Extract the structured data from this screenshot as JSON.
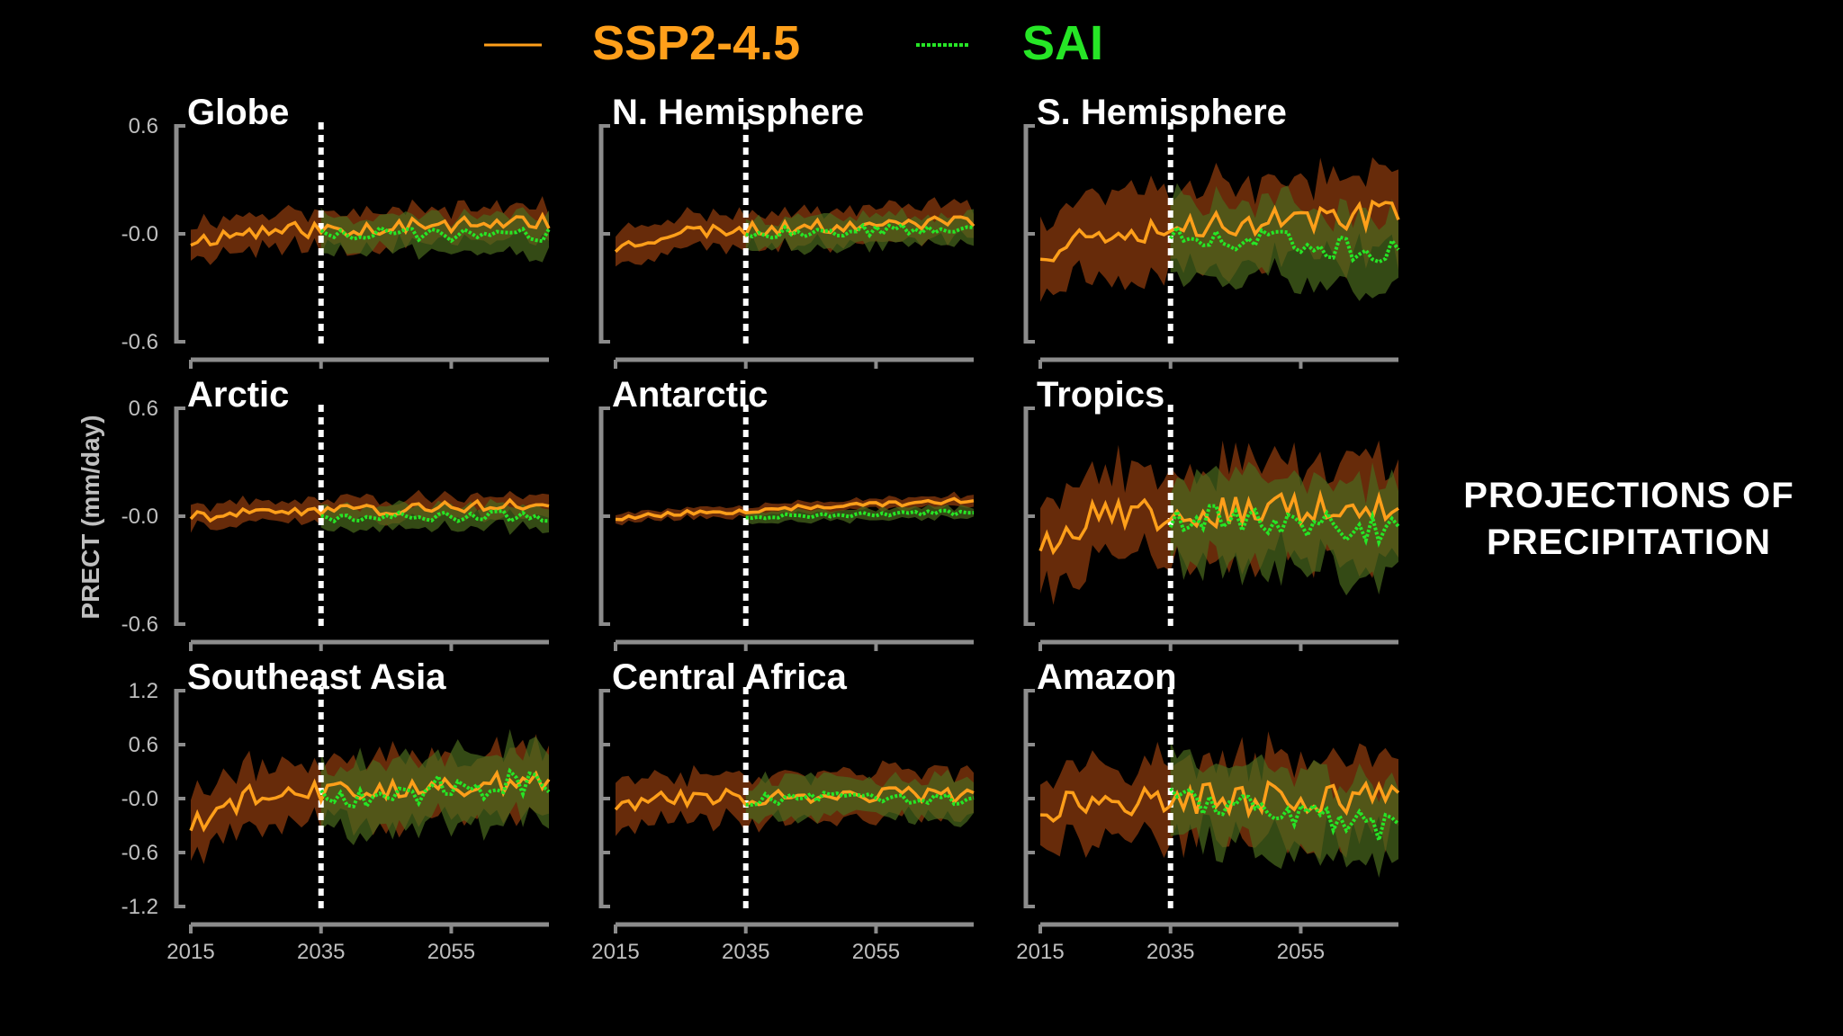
{
  "legend": {
    "ssp_label": "SSP2-4.5",
    "sai_label": "SAI"
  },
  "side_title": {
    "line1": "PROJECTIONS OF",
    "line2": "PRECIPITATION"
  },
  "colors": {
    "background": "#000000",
    "ssp": "#ff9f1a",
    "sai": "#26e626",
    "ssp_band": "#8a3a0e",
    "sai_band": "#4a6a1e",
    "axis": "#8c8c8c",
    "tick_text": "#bfbfbf",
    "marker": "#ffffff"
  },
  "chart_data": {
    "type": "line",
    "ylabel": "PRECT (mm/day)",
    "xlim": [
      2015,
      2070
    ],
    "xticks": [
      2015,
      2035,
      2055
    ],
    "xtick_labels": [
      "2015",
      "2035",
      "2055"
    ],
    "intervention_year": 2035,
    "row_yticks": [
      {
        "ylim": [
          -0.6,
          0.6
        ],
        "ticks": [
          0.6,
          0.0,
          -0.6
        ],
        "labels": [
          "0.6",
          "-0.0",
          "-0.6"
        ]
      },
      {
        "ylim": [
          -0.6,
          0.6
        ],
        "ticks": [
          0.6,
          0.0,
          -0.6
        ],
        "labels": [
          "0.6",
          "-0.0",
          "-0.6"
        ]
      },
      {
        "ylim": [
          -1.2,
          1.2
        ],
        "ticks": [
          1.2,
          0.6,
          0.0,
          -0.6,
          -1.2
        ],
        "labels": [
          "1.2",
          "0.6",
          "-0.0",
          "-0.6",
          "-1.2"
        ]
      }
    ],
    "panels": [
      {
        "title": "Globe",
        "row": 0,
        "col": 0,
        "ssp_trend": 0.07,
        "sai_trend": -0.01,
        "ssp_noise": 0.03,
        "sai_noise": 0.025,
        "ssp_spread": 0.1,
        "sai_spread": 0.1,
        "ssp_start": -0.04,
        "seed": 11
      },
      {
        "title": "N. Hemisphere",
        "row": 0,
        "col": 1,
        "ssp_trend": 0.07,
        "sai_trend": 0.04,
        "ssp_noise": 0.025,
        "sai_noise": 0.02,
        "ssp_spread": 0.09,
        "sai_spread": 0.08,
        "ssp_start": -0.08,
        "seed": 23
      },
      {
        "title": "S. Hemisphere",
        "row": 0,
        "col": 2,
        "ssp_trend": 0.12,
        "sai_trend": -0.1,
        "ssp_noise": 0.055,
        "sai_noise": 0.045,
        "ssp_spread": 0.22,
        "sai_spread": 0.2,
        "ssp_start": -0.1,
        "seed": 37
      },
      {
        "title": "Arctic",
        "row": 1,
        "col": 0,
        "ssp_trend": 0.07,
        "sai_trend": 0.0,
        "ssp_noise": 0.02,
        "sai_noise": 0.02,
        "ssp_spread": 0.06,
        "sai_spread": 0.06,
        "ssp_start": 0.0,
        "seed": 41
      },
      {
        "title": "Antarctic",
        "row": 1,
        "col": 1,
        "ssp_trend": 0.09,
        "sai_trend": 0.02,
        "ssp_noise": 0.01,
        "sai_noise": 0.01,
        "ssp_spread": 0.03,
        "sai_spread": 0.03,
        "ssp_start": -0.01,
        "seed": 53
      },
      {
        "title": "Tropics",
        "row": 1,
        "col": 2,
        "ssp_trend": 0.05,
        "sai_trend": -0.08,
        "ssp_noise": 0.06,
        "sai_noise": 0.05,
        "ssp_spread": 0.26,
        "sai_spread": 0.24,
        "ssp_start": -0.15,
        "seed": 67
      },
      {
        "title": "Southeast Asia",
        "row": 2,
        "col": 0,
        "ssp_trend": 0.2,
        "sai_trend": 0.2,
        "ssp_noise": 0.08,
        "sai_noise": 0.1,
        "ssp_spread": 0.35,
        "sai_spread": 0.38,
        "ssp_start": -0.3,
        "seed": 79
      },
      {
        "title": "Central Africa",
        "row": 2,
        "col": 1,
        "ssp_trend": 0.05,
        "sai_trend": 0.0,
        "ssp_noise": 0.06,
        "sai_noise": 0.05,
        "ssp_spread": 0.25,
        "sai_spread": 0.22,
        "ssp_start": -0.08,
        "seed": 83
      },
      {
        "title": "Amazon",
        "row": 2,
        "col": 2,
        "ssp_trend": 0.0,
        "sai_trend": -0.35,
        "ssp_noise": 0.12,
        "sai_noise": 0.1,
        "ssp_spread": 0.45,
        "sai_spread": 0.45,
        "ssp_start": -0.1,
        "seed": 97
      }
    ]
  }
}
